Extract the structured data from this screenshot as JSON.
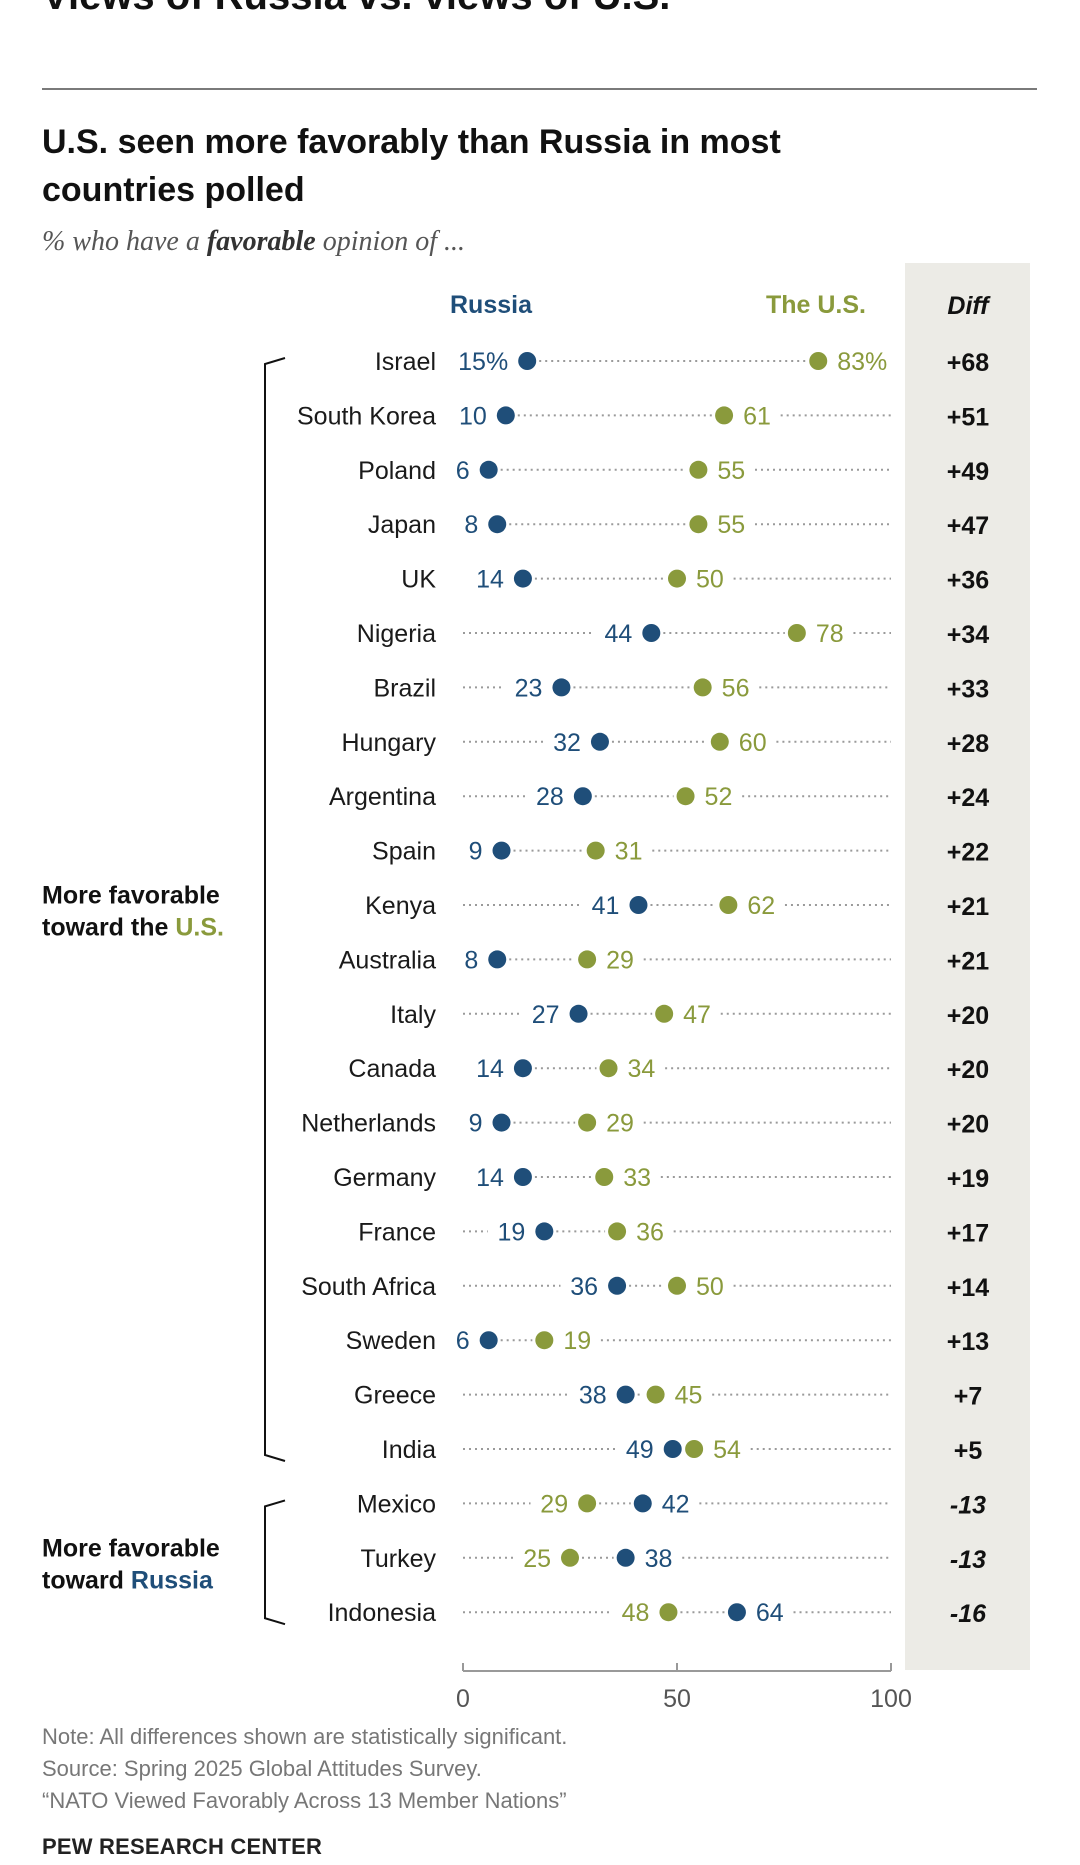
{
  "page_heading": "Views of Russia vs. views of U.S.",
  "chart_data": {
    "type": "dot",
    "title": "U.S. seen more favorably than Russia in most countries polled",
    "subtitle": {
      "before": "% who have a ",
      "bold": "favorable",
      "after": " opinion of ..."
    },
    "series": [
      {
        "name": "Russia",
        "color": "#1f4e79"
      },
      {
        "name": "The U.S.",
        "color": "#8a9a3c"
      }
    ],
    "diff_header": "Diff",
    "xlim": [
      0,
      100
    ],
    "ticks": [
      0,
      50,
      100
    ],
    "groups": [
      {
        "line1": "More favorable",
        "line2_prefix": "toward the ",
        "line2_highlight": "U.S.",
        "highlight_color": "#8a9a3c",
        "rows": [
          0,
          20
        ]
      },
      {
        "line1": "More favorable",
        "line2_prefix": "toward ",
        "line2_highlight": "Russia",
        "highlight_color": "#1f4e79",
        "rows": [
          21,
          23
        ]
      }
    ],
    "rows": [
      {
        "country": "Israel",
        "russia": 15,
        "us": 83,
        "russia_label": "15%",
        "us_label": "83%",
        "diff": "+68"
      },
      {
        "country": "South Korea",
        "russia": 10,
        "us": 61,
        "russia_label": "10",
        "us_label": "61",
        "diff": "+51"
      },
      {
        "country": "Poland",
        "russia": 6,
        "us": 55,
        "russia_label": "6",
        "us_label": "55",
        "diff": "+49"
      },
      {
        "country": "Japan",
        "russia": 8,
        "us": 55,
        "russia_label": "8",
        "us_label": "55",
        "diff": "+47"
      },
      {
        "country": "UK",
        "russia": 14,
        "us": 50,
        "russia_label": "14",
        "us_label": "50",
        "diff": "+36"
      },
      {
        "country": "Nigeria",
        "russia": 44,
        "us": 78,
        "russia_label": "44",
        "us_label": "78",
        "diff": "+34"
      },
      {
        "country": "Brazil",
        "russia": 23,
        "us": 56,
        "russia_label": "23",
        "us_label": "56",
        "diff": "+33"
      },
      {
        "country": "Hungary",
        "russia": 32,
        "us": 60,
        "russia_label": "32",
        "us_label": "60",
        "diff": "+28"
      },
      {
        "country": "Argentina",
        "russia": 28,
        "us": 52,
        "russia_label": "28",
        "us_label": "52",
        "diff": "+24"
      },
      {
        "country": "Spain",
        "russia": 9,
        "us": 31,
        "russia_label": "9",
        "us_label": "31",
        "diff": "+22"
      },
      {
        "country": "Kenya",
        "russia": 41,
        "us": 62,
        "russia_label": "41",
        "us_label": "62",
        "diff": "+21"
      },
      {
        "country": "Australia",
        "russia": 8,
        "us": 29,
        "russia_label": "8",
        "us_label": "29",
        "diff": "+21"
      },
      {
        "country": "Italy",
        "russia": 27,
        "us": 47,
        "russia_label": "27",
        "us_label": "47",
        "diff": "+20"
      },
      {
        "country": "Canada",
        "russia": 14,
        "us": 34,
        "russia_label": "14",
        "us_label": "34",
        "diff": "+20"
      },
      {
        "country": "Netherlands",
        "russia": 9,
        "us": 29,
        "russia_label": "9",
        "us_label": "29",
        "diff": "+20"
      },
      {
        "country": "Germany",
        "russia": 14,
        "us": 33,
        "russia_label": "14",
        "us_label": "33",
        "diff": "+19"
      },
      {
        "country": "France",
        "russia": 19,
        "us": 36,
        "russia_label": "19",
        "us_label": "36",
        "diff": "+17"
      },
      {
        "country": "South Africa",
        "russia": 36,
        "us": 50,
        "russia_label": "36",
        "us_label": "50",
        "diff": "+14"
      },
      {
        "country": "Sweden",
        "russia": 6,
        "us": 19,
        "russia_label": "6",
        "us_label": "19",
        "diff": "+13"
      },
      {
        "country": "Greece",
        "russia": 38,
        "us": 45,
        "russia_label": "38",
        "us_label": "45",
        "diff": "+7"
      },
      {
        "country": "India",
        "russia": 49,
        "us": 54,
        "russia_label": "49",
        "us_label": "54",
        "diff": "+5"
      },
      {
        "country": "Mexico",
        "russia": 42,
        "us": 29,
        "russia_label": "42",
        "us_label": "29",
        "diff": "-13"
      },
      {
        "country": "Turkey",
        "russia": 38,
        "us": 25,
        "russia_label": "38",
        "us_label": "25",
        "diff": "-13"
      },
      {
        "country": "Indonesia",
        "russia": 64,
        "us": 48,
        "russia_label": "64",
        "us_label": "48",
        "diff": "-16"
      }
    ]
  },
  "notes": [
    "Note: All differences shown are statistically significant.",
    "Source: Spring 2025 Global Attitudes Survey.",
    "“NATO Viewed Favorably Across 13 Member Nations”"
  ],
  "brand": "PEW RESEARCH CENTER"
}
